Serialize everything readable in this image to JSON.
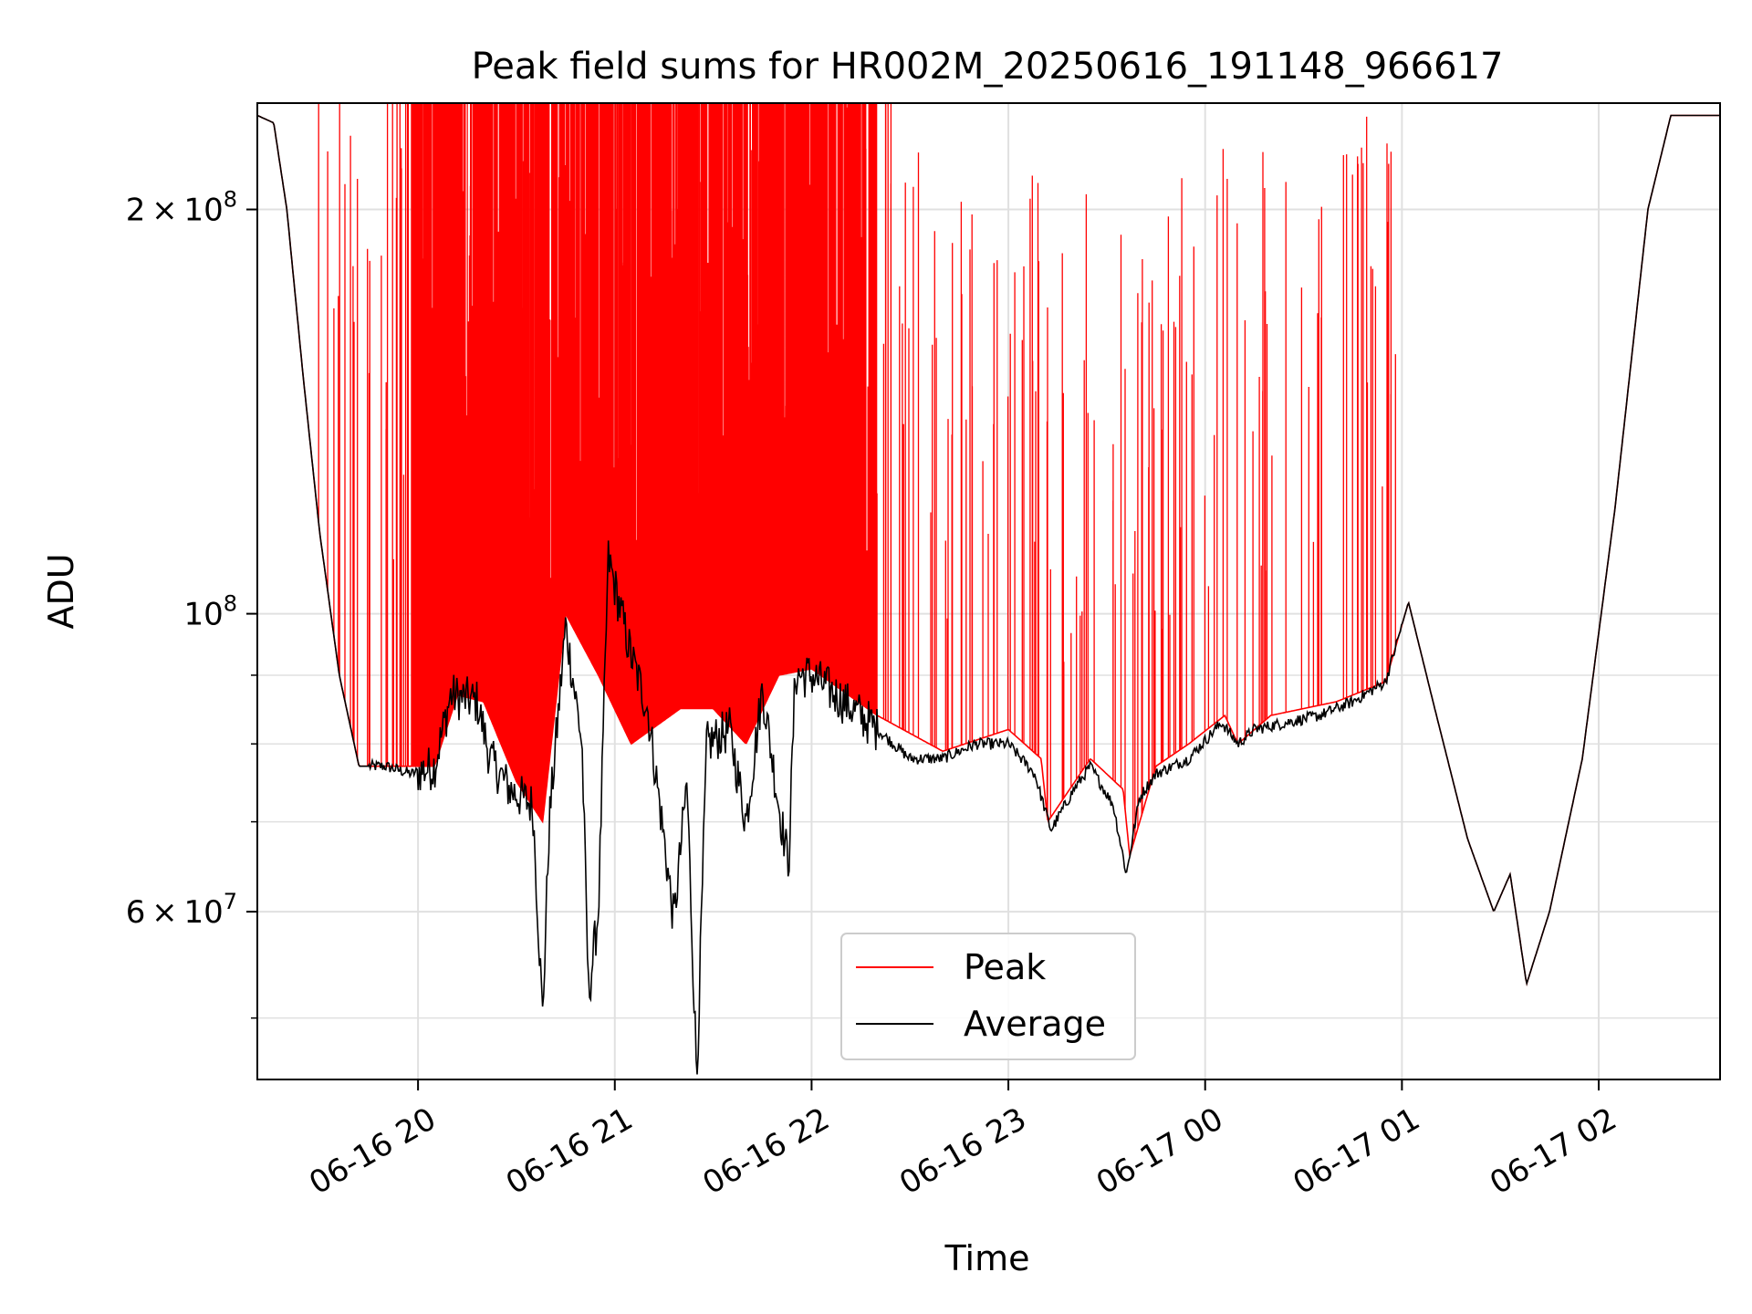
{
  "chart_data": {
    "type": "line",
    "title": "Peak field sums for HR002M_20250616_191148_966617",
    "xlabel": "Time",
    "ylabel": "ADU",
    "y_scale": "log",
    "ylim": [
      45000000,
      240000000
    ],
    "xlim": [
      "06-16 19:11",
      "06-17 02:37"
    ],
    "grid": true,
    "legend_position": "lower-center",
    "x_ticks": [
      {
        "t": "06-16 20:00",
        "label": "06-16 20"
      },
      {
        "t": "06-16 21:00",
        "label": "06-16 21"
      },
      {
        "t": "06-16 22:00",
        "label": "06-16 22"
      },
      {
        "t": "06-16 23:00",
        "label": "06-16 23"
      },
      {
        "t": "06-17 00:00",
        "label": "06-17 00"
      },
      {
        "t": "06-17 01:00",
        "label": "06-17 01"
      },
      {
        "t": "06-17 02:00",
        "label": "06-17 02"
      }
    ],
    "y_major_ticks": [
      {
        "value": 200000000,
        "label_mantissa": "2",
        "label_base": "10",
        "label_exp": "8",
        "times": "×"
      },
      {
        "value": 100000000,
        "label_mantissa": "",
        "label_base": "10",
        "label_exp": "8",
        "times": ""
      },
      {
        "value": 60000000,
        "label_mantissa": "6",
        "label_base": "10",
        "label_exp": "7",
        "times": "×"
      }
    ],
    "y_minor_grid": [
      50000000,
      70000000,
      80000000,
      90000000
    ],
    "colors": {
      "peak": "#ff0000",
      "average": "#000000",
      "grid": "#e0e0e0"
    },
    "series": [
      {
        "name": "Peak",
        "color": "#ff0000",
        "baseline_points": [
          [
            "06-16 19:11",
            235000000
          ],
          [
            "06-16 19:16",
            232000000
          ],
          [
            "06-16 19:20",
            200000000
          ],
          [
            "06-16 19:25",
            150000000
          ],
          [
            "06-16 19:30",
            115000000
          ],
          [
            "06-16 19:36",
            90000000
          ],
          [
            "06-16 19:42",
            77000000
          ],
          [
            "06-16 19:50",
            77000000
          ],
          [
            "06-16 19:58",
            77000000
          ],
          [
            "06-16 20:05",
            77000000
          ],
          [
            "06-16 20:12",
            87000000
          ],
          [
            "06-16 20:20",
            86000000
          ],
          [
            "06-16 20:30",
            75000000
          ],
          [
            "06-16 20:38",
            70000000
          ],
          [
            "06-16 20:45",
            100000000
          ],
          [
            "06-16 20:55",
            90000000
          ],
          [
            "06-16 21:05",
            80000000
          ],
          [
            "06-16 21:20",
            85000000
          ],
          [
            "06-16 21:30",
            85000000
          ],
          [
            "06-16 21:40",
            80000000
          ],
          [
            "06-16 21:50",
            90000000
          ],
          [
            "06-16 22:00",
            91000000
          ],
          [
            "06-16 22:20",
            84000000
          ],
          [
            "06-16 22:40",
            79000000
          ],
          [
            "06-16 23:00",
            82000000
          ],
          [
            "06-16 23:10",
            78000000
          ],
          [
            "06-16 23:12",
            70000000
          ],
          [
            "06-16 23:25",
            78000000
          ],
          [
            "06-16 23:35",
            74000000
          ],
          [
            "06-16 23:37",
            66000000
          ],
          [
            "06-16 23:45",
            77000000
          ],
          [
            "06-16 23:55",
            80000000
          ],
          [
            "06-17 00:06",
            84000000
          ],
          [
            "06-17 00:10",
            80000000
          ],
          [
            "06-17 00:20",
            84000000
          ],
          [
            "06-17 00:40",
            86000000
          ],
          [
            "06-17 00:55",
            89000000
          ],
          [
            "06-17 01:02",
            102000000
          ],
          [
            "06-17 01:10",
            85000000
          ],
          [
            "06-17 01:20",
            68000000
          ],
          [
            "06-17 01:28",
            60000000
          ],
          [
            "06-17 01:33",
            64000000
          ],
          [
            "06-17 01:38",
            53000000
          ],
          [
            "06-17 01:45",
            60000000
          ],
          [
            "06-17 01:55",
            78000000
          ],
          [
            "06-17 02:05",
            120000000
          ],
          [
            "06-17 02:15",
            200000000
          ],
          [
            "06-17 02:22",
            235000000
          ],
          [
            "06-17 02:37",
            235000000
          ]
        ],
        "spikes": [
          {
            "start": "06-16 19:28",
            "end": "06-16 19:50",
            "count": 14,
            "density": "sparse"
          },
          {
            "start": "06-16 19:50",
            "end": "06-16 22:25",
            "count": 260,
            "density": "dense"
          },
          {
            "start": "06-16 22:25",
            "end": "06-17 01:00",
            "count": 130,
            "density": "medium"
          }
        ]
      },
      {
        "name": "Average",
        "color": "#000000",
        "points": [
          [
            "06-16 19:11",
            235000000
          ],
          [
            "06-16 19:16",
            232000000
          ],
          [
            "06-16 19:20",
            200000000
          ],
          [
            "06-16 19:25",
            150000000
          ],
          [
            "06-16 19:30",
            115000000
          ],
          [
            "06-16 19:36",
            90000000
          ],
          [
            "06-16 19:42",
            77000000
          ],
          [
            "06-16 19:50",
            77000000
          ],
          [
            "06-16 19:58",
            76000000
          ],
          [
            "06-16 20:05",
            77000000
          ],
          [
            "06-16 20:10",
            87000000
          ],
          [
            "06-16 20:18",
            86000000
          ],
          [
            "06-16 20:22",
            78000000
          ],
          [
            "06-16 20:28",
            74000000
          ],
          [
            "06-16 20:35",
            72000000
          ],
          [
            "06-16 20:38",
            50000000
          ],
          [
            "06-16 20:40",
            70000000
          ],
          [
            "06-16 20:45",
            98000000
          ],
          [
            "06-16 20:50",
            80000000
          ],
          [
            "06-16 20:52",
            52000000
          ],
          [
            "06-16 20:55",
            60000000
          ],
          [
            "06-16 20:58",
            110000000
          ],
          [
            "06-16 21:05",
            93000000
          ],
          [
            "06-16 21:10",
            85000000
          ],
          [
            "06-16 21:15",
            68000000
          ],
          [
            "06-16 21:18",
            59000000
          ],
          [
            "06-16 21:22",
            75000000
          ],
          [
            "06-16 21:25",
            45000000
          ],
          [
            "06-16 21:28",
            80000000
          ],
          [
            "06-16 21:35",
            82000000
          ],
          [
            "06-16 21:40",
            70000000
          ],
          [
            "06-16 21:45",
            88000000
          ],
          [
            "06-16 21:50",
            72000000
          ],
          [
            "06-16 21:53",
            65000000
          ],
          [
            "06-16 21:55",
            90000000
          ],
          [
            "06-16 22:00",
            90000000
          ],
          [
            "06-16 22:10",
            86000000
          ],
          [
            "06-16 22:20",
            82000000
          ],
          [
            "06-16 22:30",
            78000000
          ],
          [
            "06-16 22:40",
            78000000
          ],
          [
            "06-16 22:50",
            80000000
          ],
          [
            "06-16 23:00",
            80000000
          ],
          [
            "06-16 23:08",
            76000000
          ],
          [
            "06-16 23:13",
            69000000
          ],
          [
            "06-16 23:20",
            74000000
          ],
          [
            "06-16 23:25",
            77000000
          ],
          [
            "06-16 23:32",
            72000000
          ],
          [
            "06-16 23:36",
            64000000
          ],
          [
            "06-16 23:40",
            73000000
          ],
          [
            "06-16 23:45",
            76000000
          ],
          [
            "06-16 23:55",
            78000000
          ],
          [
            "06-17 00:05",
            83000000
          ],
          [
            "06-17 00:10",
            80000000
          ],
          [
            "06-17 00:15",
            82000000
          ],
          [
            "06-17 00:25",
            83000000
          ],
          [
            "06-17 00:35",
            84000000
          ],
          [
            "06-17 00:45",
            86000000
          ],
          [
            "06-17 00:55",
            89000000
          ],
          [
            "06-17 01:02",
            102000000
          ],
          [
            "06-17 01:10",
            85000000
          ],
          [
            "06-17 01:20",
            68000000
          ],
          [
            "06-17 01:28",
            60000000
          ],
          [
            "06-17 01:33",
            64000000
          ],
          [
            "06-17 01:38",
            53000000
          ],
          [
            "06-17 01:45",
            60000000
          ],
          [
            "06-17 01:55",
            78000000
          ],
          [
            "06-17 02:05",
            120000000
          ],
          [
            "06-17 02:15",
            200000000
          ],
          [
            "06-17 02:22",
            235000000
          ],
          [
            "06-17 02:37",
            235000000
          ]
        ]
      }
    ]
  }
}
